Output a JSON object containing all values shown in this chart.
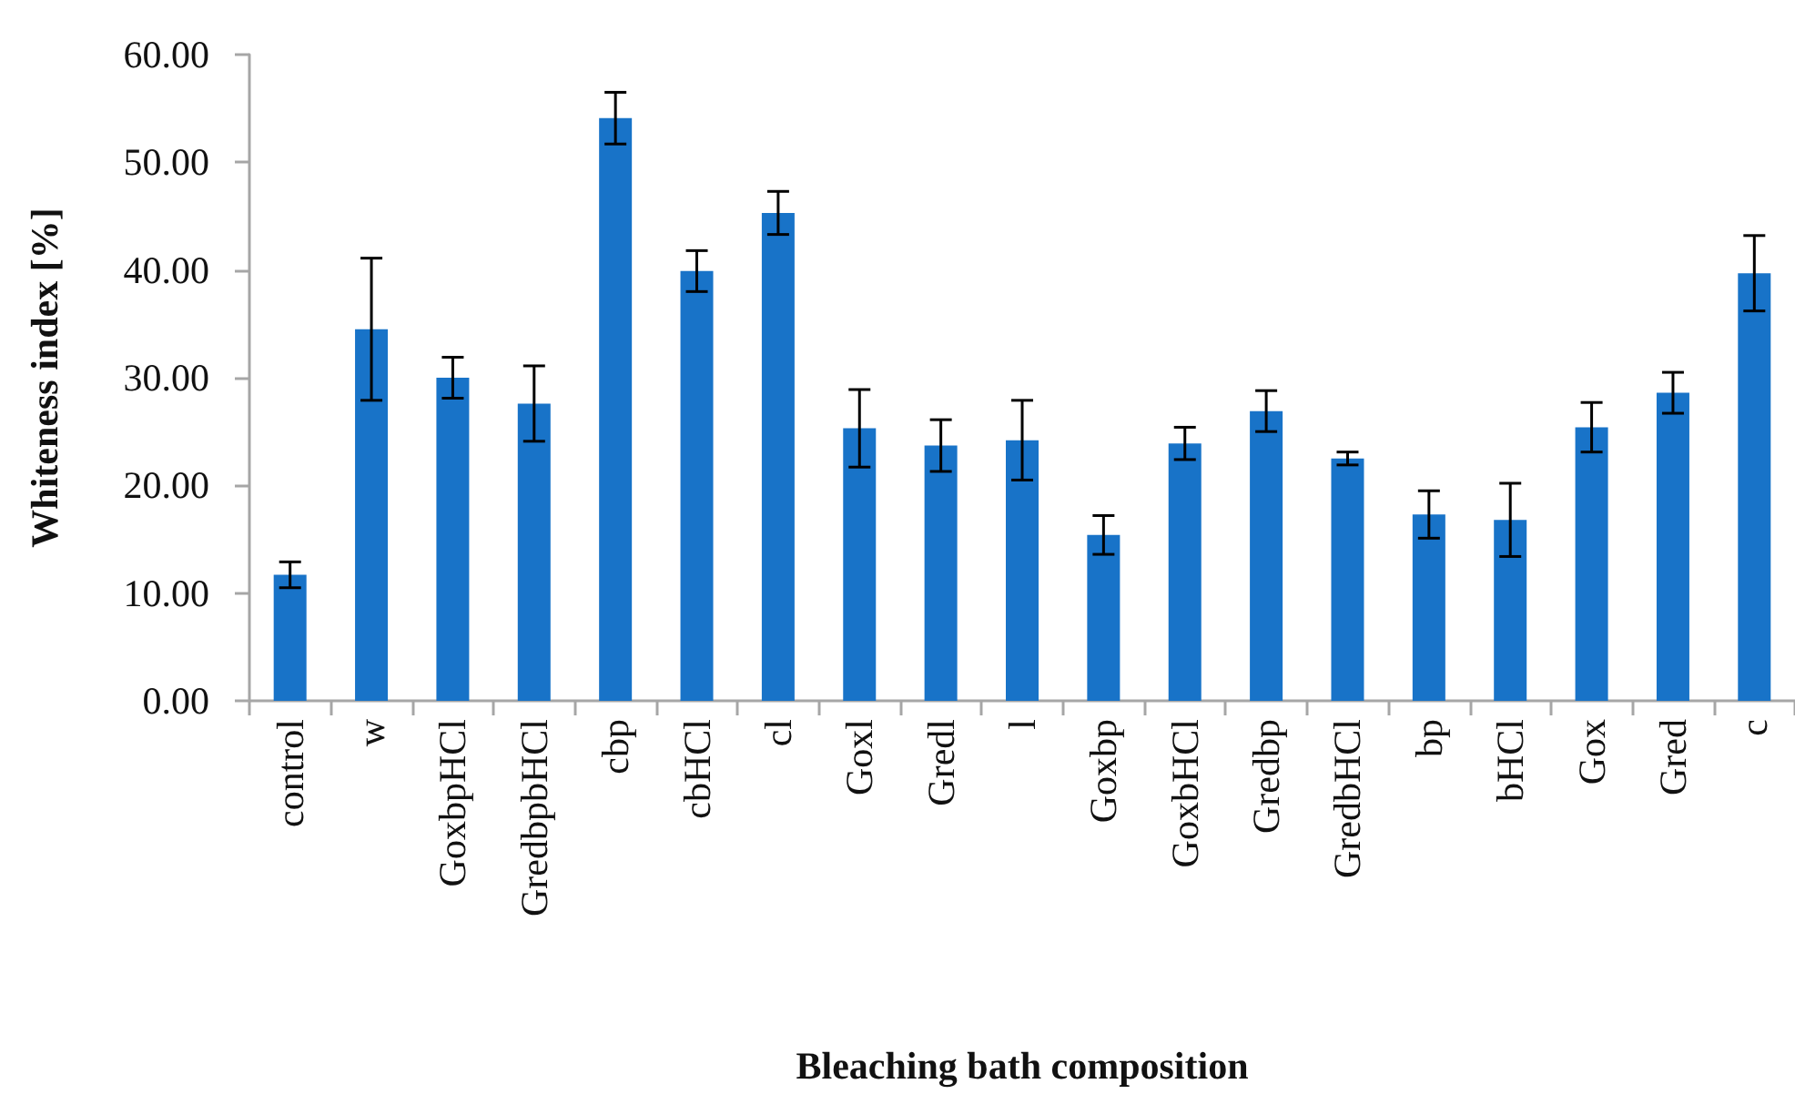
{
  "chart_data": {
    "type": "bar",
    "xlabel": "Bleaching bath composition",
    "ylabel": "Whiteness index [%]",
    "categories": [
      "control",
      "w",
      "GoxbpHCl",
      "GredbpbHCl",
      "cbp",
      "cbHCl",
      "cl",
      "Goxl",
      "Gredl",
      "l",
      "Goxbp",
      "GoxbHCl",
      "Gredbp",
      "GredbHCl",
      "bp",
      "bHCl",
      "Gox",
      "Gred",
      "c"
    ],
    "values": [
      11.7,
      34.5,
      30.0,
      27.6,
      54.1,
      39.9,
      45.3,
      25.3,
      23.7,
      24.2,
      15.4,
      23.9,
      26.9,
      22.5,
      17.3,
      16.8,
      25.4,
      28.6,
      39.7
    ],
    "errors": [
      1.2,
      6.6,
      1.9,
      3.5,
      2.4,
      1.9,
      2.0,
      3.6,
      2.4,
      3.7,
      1.8,
      1.5,
      1.9,
      0.6,
      2.2,
      3.4,
      2.3,
      1.9,
      3.5
    ],
    "color": "#1873c8",
    "ylim": [
      0,
      60
    ],
    "yticks": [
      {
        "value": 0,
        "label": "0.00"
      },
      {
        "value": 10,
        "label": "10.00"
      },
      {
        "value": 20,
        "label": "20.00"
      },
      {
        "value": 30,
        "label": "30.00"
      },
      {
        "value": 40,
        "label": "40.00"
      },
      {
        "value": 50,
        "label": "50.00"
      },
      {
        "value": 60,
        "label": "60.00"
      }
    ]
  }
}
